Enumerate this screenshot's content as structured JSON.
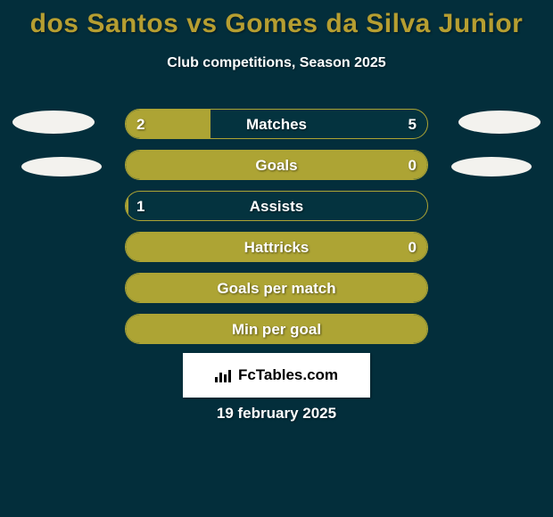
{
  "colors": {
    "background": "#032e3b",
    "title": "#b69e31",
    "text": "#ffffff",
    "bar_track": "#04333f",
    "bar_fill": "#ada434",
    "badge": "#f3f2ee",
    "logo_bg": "#ffffff",
    "logo_text": "#000000"
  },
  "title": "dos Santos vs Gomes da Silva Junior",
  "subtitle": "Club competitions, Season 2025",
  "bars": [
    {
      "label": "Matches",
      "left": "2",
      "right": "5",
      "fill_pct": 28,
      "show_values": true
    },
    {
      "label": "Goals",
      "left": "",
      "right": "0",
      "fill_pct": 100,
      "show_values": true
    },
    {
      "label": "Assists",
      "left": "1",
      "right": "",
      "fill_pct": 1,
      "show_values": true
    },
    {
      "label": "Hattricks",
      "left": "",
      "right": "0",
      "fill_pct": 100,
      "show_values": true
    },
    {
      "label": "Goals per match",
      "left": "",
      "right": "",
      "fill_pct": 100,
      "show_values": false
    },
    {
      "label": "Min per goal",
      "left": "",
      "right": "",
      "fill_pct": 100,
      "show_values": false
    }
  ],
  "logo_text": "FcTables.com",
  "date": "19 february 2025"
}
